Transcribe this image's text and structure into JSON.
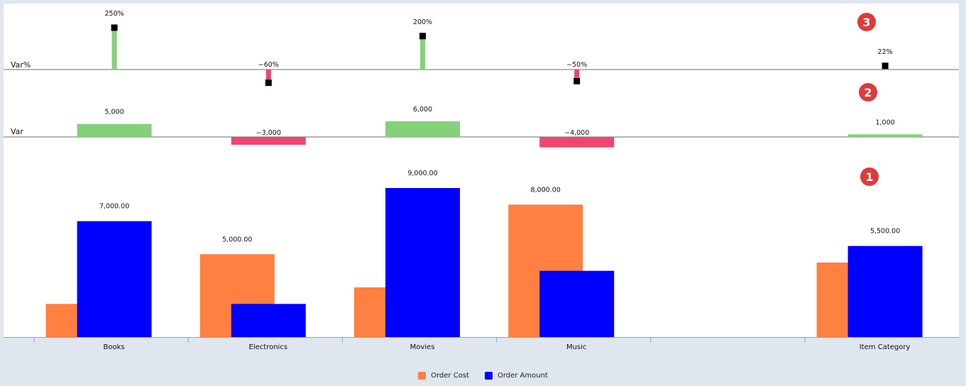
{
  "chart_data": {
    "type": "bar",
    "categories": [
      "Books",
      "Electronics",
      "Movies",
      "Music",
      "",
      "Item Category"
    ],
    "series": [
      {
        "name": "Order Cost",
        "color": "#ff8040",
        "values": [
          2000,
          5000,
          3000,
          8000,
          null,
          4500
        ]
      },
      {
        "name": "Order Amount",
        "color": "#0000ff",
        "values": [
          7000,
          2000,
          9000,
          4000,
          null,
          5500
        ]
      }
    ],
    "data_labels": [
      "7,000.00",
      "5,000.00",
      "9,000.00",
      "8,000.00",
      "",
      "5,500.00"
    ],
    "ylim": [
      0,
      9000
    ],
    "var": {
      "label": "Var",
      "values": [
        5000,
        -3000,
        6000,
        -4000,
        null,
        1000
      ],
      "labels": [
        "5,000",
        "−3,000",
        "6,000",
        "−4,000",
        "",
        "1,000"
      ],
      "range": [
        -6000,
        6000
      ]
    },
    "var_pct": {
      "label": "Var%",
      "values": [
        250,
        -60,
        200,
        -50,
        null,
        22
      ],
      "labels": [
        "250%",
        "−60%",
        "200%",
        "−50%",
        "",
        "22%"
      ],
      "range": [
        -50,
        250
      ]
    },
    "positive_color": "#86d07c",
    "negative_color": "#f0456e",
    "marker_color": "#000000",
    "axis_color": "#9aa5b1",
    "badge_color": "#e03a3a",
    "badges": [
      "1",
      "2",
      "3"
    ]
  }
}
